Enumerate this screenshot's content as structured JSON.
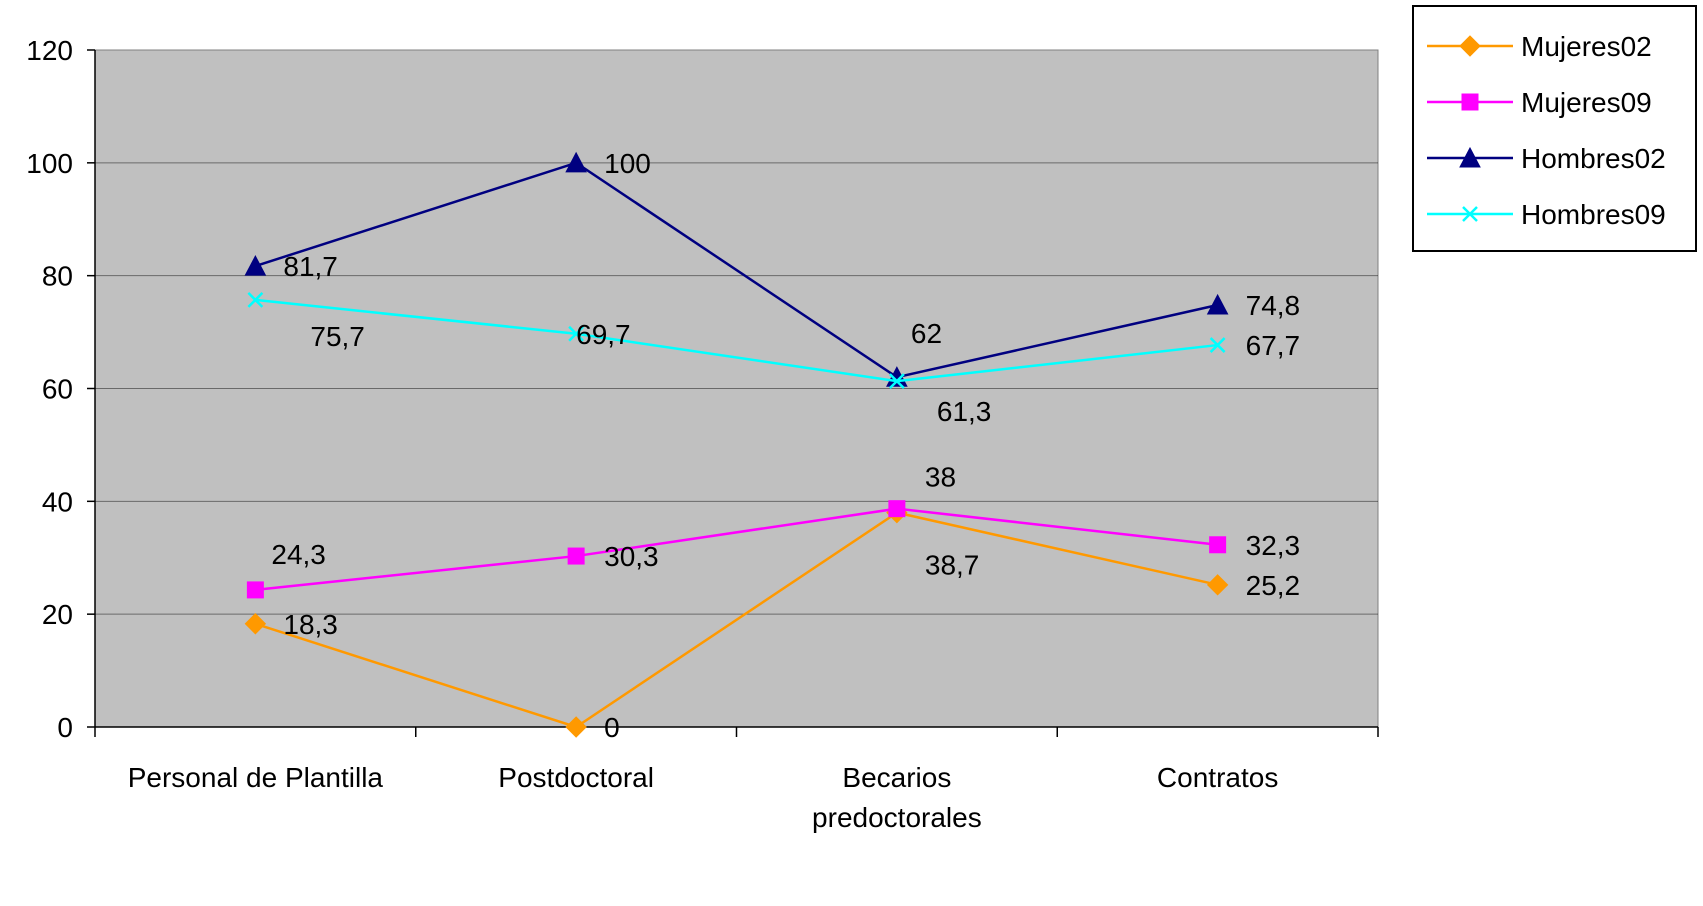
{
  "chart_data": {
    "type": "line",
    "categories": [
      [
        "Personal de Plantilla"
      ],
      [
        "Postdoctoral"
      ],
      [
        "Becarios",
        "predoctorales"
      ],
      [
        "Contratos"
      ]
    ],
    "ylim": [
      0,
      120
    ],
    "yticks": [
      0,
      20,
      40,
      60,
      80,
      100,
      120
    ],
    "grid": true,
    "plot_background": "#C0C0C0",
    "legend_position": "top-right",
    "series": [
      {
        "name": "Mujeres02",
        "color": "#FF9900",
        "marker": "diamond",
        "values": [
          18.3,
          0,
          38,
          25.2
        ],
        "labels": [
          "18,3",
          "0",
          "38",
          "25,2"
        ]
      },
      {
        "name": "Mujeres09",
        "color": "#FF00FF",
        "marker": "square",
        "values": [
          24.3,
          30.3,
          38.7,
          32.3
        ],
        "labels": [
          "24,3",
          "30,3",
          "38,7",
          "32,3"
        ]
      },
      {
        "name": "Hombres02",
        "color": "#000080",
        "marker": "triangle",
        "values": [
          81.7,
          100,
          62,
          74.8
        ],
        "labels": [
          "81,7",
          "100",
          "62",
          "74,8"
        ]
      },
      {
        "name": "Hombres09",
        "color": "#00FFFF",
        "marker": "x",
        "values": [
          75.7,
          69.7,
          61.3,
          67.7
        ],
        "labels": [
          "75,7",
          "69,7",
          "61,3",
          "67,7"
        ]
      }
    ]
  }
}
